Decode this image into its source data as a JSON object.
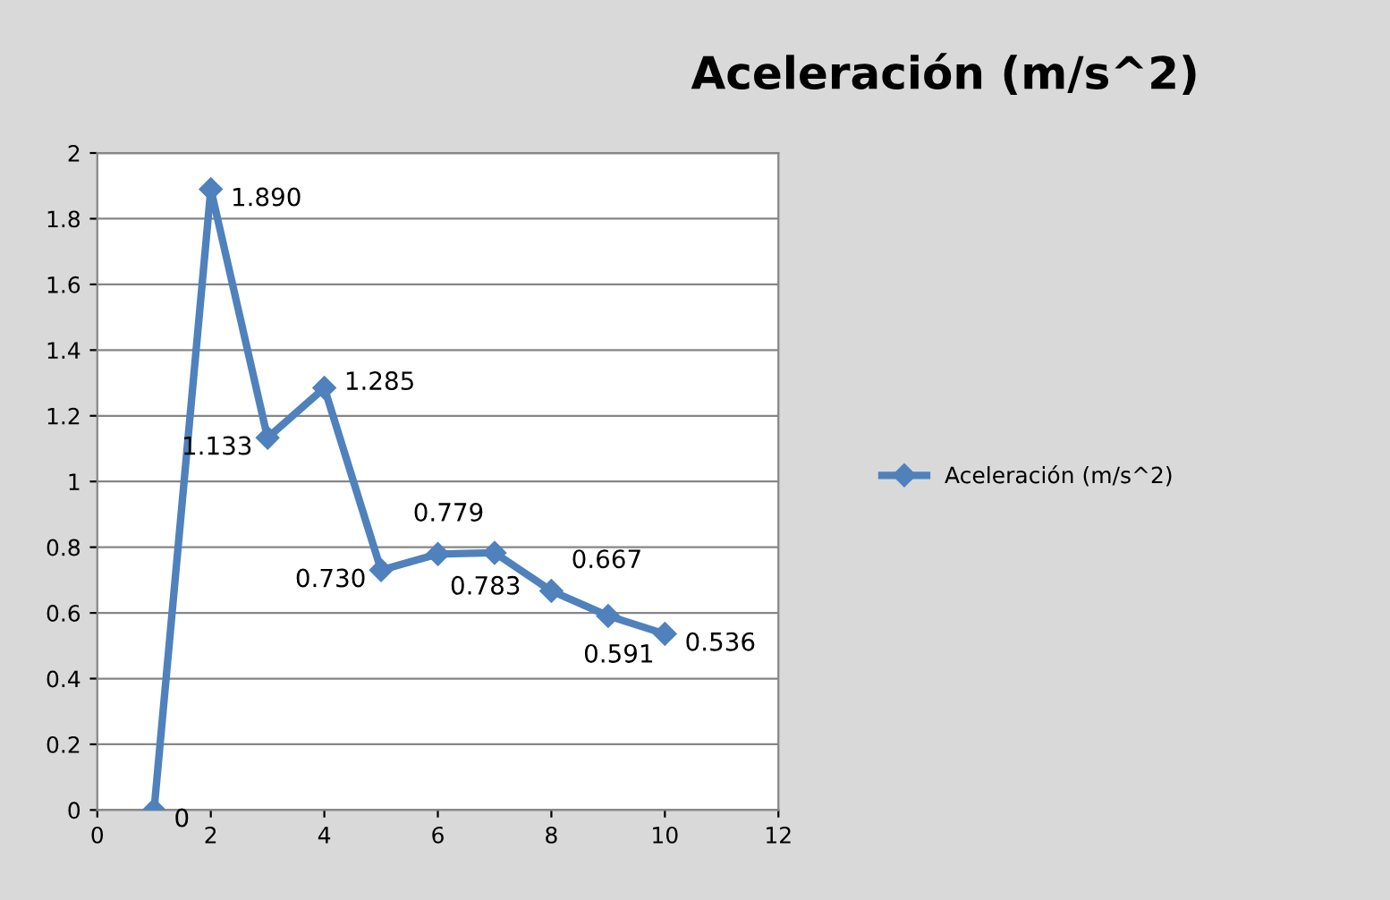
{
  "chart_data": {
    "type": "line",
    "title": "Aceleración (m/s^2)",
    "x": [
      1,
      2,
      3,
      4,
      5,
      6,
      7,
      8,
      9,
      10
    ],
    "series": [
      {
        "name": "Aceleración (m/s^2)",
        "color": "#4f81bd",
        "values": [
          0,
          1.89,
          1.133,
          1.285,
          0.73,
          0.779,
          0.783,
          0.667,
          0.591,
          0.536
        ],
        "value_labels": [
          "0",
          "1.890",
          "1.133",
          "1.285",
          "0.730",
          "0.779",
          "0.783",
          "0.667",
          "0.591",
          "0.536"
        ]
      }
    ],
    "xlim": [
      0,
      12
    ],
    "xticks": [
      0,
      2,
      4,
      6,
      8,
      10,
      12
    ],
    "ylim": [
      0,
      2
    ],
    "yticks": [
      0,
      0.2,
      0.4,
      0.6,
      0.8,
      1,
      1.2,
      1.4,
      1.6,
      1.8,
      2
    ],
    "grid": "y",
    "legend": "right",
    "marker": "diamond",
    "line_style": "solid"
  }
}
